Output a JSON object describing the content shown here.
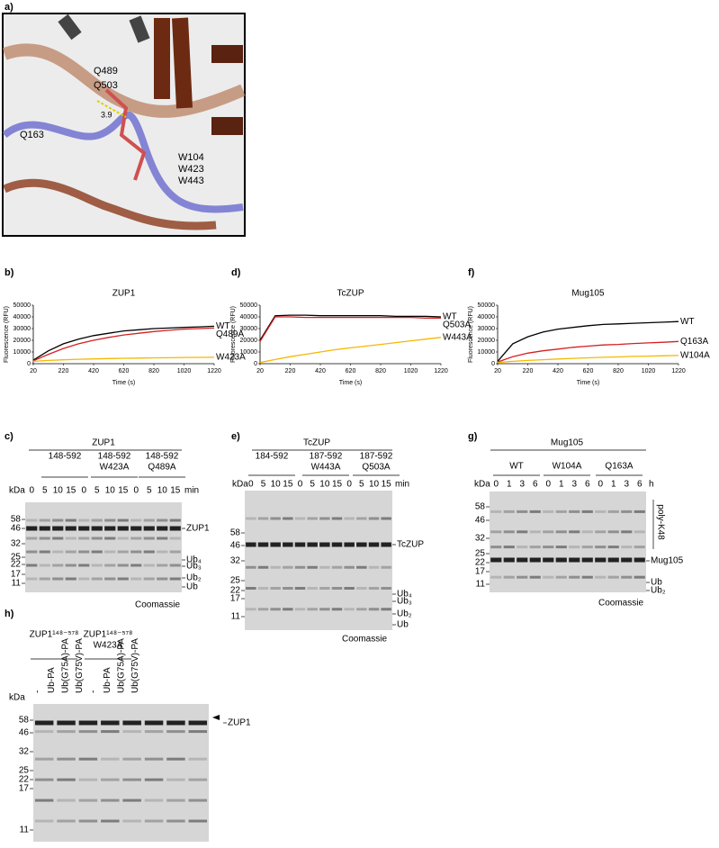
{
  "panel_labels": {
    "a": "a)",
    "b": "b)",
    "c": "c)",
    "d": "d)",
    "e": "e)",
    "f": "f)",
    "g": "g)",
    "h": "h)"
  },
  "structure": {
    "labels": [
      {
        "text": "Q489",
        "color": "#a8a8a8"
      },
      {
        "text": "Q503",
        "color": "#8b3a1a"
      },
      {
        "text": "3.9",
        "color": "#000000"
      },
      {
        "text": "Q163",
        "color": "#4a4aa8"
      },
      {
        "text": "W104",
        "color": "#4a4aa8"
      },
      {
        "text": "W423",
        "color": "#a8a8a8"
      },
      {
        "text": "W443",
        "color": "#8b3a1a"
      }
    ]
  },
  "chart_data": [
    {
      "type": "line",
      "title": "ZUP1",
      "x_label": "Time (s)",
      "y_label": "Fluorescence (RFU)",
      "x": [
        20,
        120,
        220,
        320,
        420,
        520,
        620,
        720,
        820,
        920,
        1020,
        1120,
        1220
      ],
      "xlim": [
        20,
        1220
      ],
      "xticks": [
        20,
        220,
        420,
        620,
        820,
        1020,
        1220
      ],
      "ylim": [
        0,
        50000
      ],
      "yticks": [
        0,
        10000,
        20000,
        30000,
        40000,
        50000
      ],
      "series": [
        {
          "name": "WT",
          "color": "#000000",
          "values": [
            3000,
            11000,
            17000,
            21000,
            24000,
            26000,
            28000,
            29000,
            30000,
            30500,
            31000,
            31500,
            32000
          ]
        },
        {
          "name": "Q489A",
          "color": "#d42020",
          "values": [
            2500,
            8000,
            13000,
            17000,
            20000,
            22500,
            24500,
            26000,
            27500,
            28500,
            29500,
            30000,
            30500
          ]
        },
        {
          "name": "W423A",
          "color": "#f5b800",
          "values": [
            2000,
            2800,
            3300,
            3800,
            4100,
            4400,
            4600,
            4800,
            5000,
            5100,
            5300,
            5400,
            5500
          ]
        }
      ]
    },
    {
      "type": "line",
      "title": "TcZUP",
      "x_label": "Time (s)",
      "y_label": "Fluorescence (RFU)",
      "x": [
        20,
        120,
        220,
        320,
        420,
        520,
        620,
        720,
        820,
        920,
        1020,
        1120,
        1220
      ],
      "xlim": [
        20,
        1220
      ],
      "xticks": [
        20,
        220,
        420,
        620,
        820,
        1020,
        1220
      ],
      "ylim": [
        0,
        50000
      ],
      "yticks": [
        0,
        10000,
        20000,
        30000,
        40000,
        50000
      ],
      "series": [
        {
          "name": "WT",
          "color": "#000000",
          "values": [
            20000,
            41000,
            41500,
            41500,
            41000,
            41000,
            41000,
            41000,
            41000,
            40500,
            40500,
            40500,
            40000
          ]
        },
        {
          "name": "Q503A",
          "color": "#d42020",
          "values": [
            19000,
            40000,
            40000,
            39500,
            39500,
            39500,
            39500,
            39500,
            39500,
            39500,
            39500,
            39000,
            39000
          ]
        },
        {
          "name": "W443A",
          "color": "#f5b800",
          "values": [
            1000,
            3500,
            6000,
            8000,
            10000,
            12000,
            13500,
            15000,
            16500,
            18000,
            19500,
            21000,
            22500
          ]
        }
      ]
    },
    {
      "type": "line",
      "title": "Mug105",
      "x_label": "Time (s)",
      "y_label": "Fluorescence (RFU)",
      "x": [
        20,
        120,
        220,
        320,
        420,
        520,
        620,
        720,
        820,
        920,
        1020,
        1120,
        1220
      ],
      "xlim": [
        20,
        1220
      ],
      "xticks": [
        20,
        220,
        420,
        620,
        820,
        1020,
        1220
      ],
      "ylim": [
        0,
        50000
      ],
      "yticks": [
        0,
        10000,
        20000,
        30000,
        40000,
        50000
      ],
      "series": [
        {
          "name": "WT",
          "color": "#000000",
          "values": [
            2000,
            17000,
            23000,
            27000,
            29500,
            31000,
            32500,
            33500,
            34000,
            34500,
            35000,
            35500,
            36000
          ]
        },
        {
          "name": "Q163A",
          "color": "#d42020",
          "values": [
            1500,
            6000,
            9000,
            11000,
            12500,
            14000,
            15000,
            16000,
            16500,
            17200,
            17800,
            18300,
            19000
          ]
        },
        {
          "name": "W104A",
          "color": "#f5b800",
          "values": [
            1000,
            2000,
            2800,
            3400,
            4000,
            4500,
            5000,
            5500,
            5800,
            6200,
            6500,
            6800,
            7000
          ]
        }
      ]
    }
  ],
  "gels": [
    {
      "title": "ZUP1",
      "constructs": [
        [
          "148-592"
        ],
        [
          "148-592",
          "W423A"
        ],
        [
          "148-592",
          "Q489A"
        ]
      ],
      "lanes": [
        [
          "0",
          "5",
          "10",
          "15"
        ],
        [
          "0",
          "5",
          "10",
          "15"
        ],
        [
          "0",
          "5",
          "10",
          "15"
        ]
      ],
      "unit": "min",
      "kda_label": "kDa",
      "markers": [
        "58",
        "46",
        "32",
        "25",
        "22",
        "17",
        "11"
      ],
      "bands": [
        "ZUP1",
        "Ub₄",
        "Ub₃",
        "Ub₂",
        "Ub"
      ],
      "stain": "Coomassie"
    },
    {
      "title": "TcZUP",
      "constructs": [
        [
          "184-592"
        ],
        [
          "187-592",
          "W443A"
        ],
        [
          "187-592",
          "Q503A"
        ]
      ],
      "lanes": [
        [
          "0",
          "5",
          "10",
          "15"
        ],
        [
          "0",
          "5",
          "10",
          "15"
        ],
        [
          "0",
          "5",
          "10",
          "15"
        ]
      ],
      "unit": "min",
      "kda_label": "kDa",
      "markers": [
        "58",
        "46",
        "32",
        "25",
        "22",
        "17",
        "11"
      ],
      "bands": [
        "TcZUP",
        "Ub₄",
        "Ub₃",
        "Ub₂",
        "Ub"
      ],
      "stain": "Coomassie"
    },
    {
      "title": "Mug105",
      "constructs": [
        [
          "WT"
        ],
        [
          "W104A"
        ],
        [
          "Q163A"
        ]
      ],
      "lanes": [
        [
          "0",
          "1",
          "3",
          "6"
        ],
        [
          "0",
          "1",
          "3",
          "6"
        ],
        [
          "0",
          "1",
          "3",
          "6"
        ]
      ],
      "unit": "h",
      "kda_label": "kDa",
      "markers": [
        "58",
        "46",
        "32",
        "25",
        "22",
        "17",
        "11"
      ],
      "bands": [
        "poly-K48",
        "Mug105",
        "Ub",
        "Ub₂"
      ],
      "stain": "Coomassie"
    },
    {
      "constructs": [
        [
          "ZUP1¹⁴⁸⁻⁵⁷⁸"
        ],
        [
          "ZUP1¹⁴⁸⁻⁵⁷⁸",
          "W423A"
        ]
      ],
      "lanes": [
        [
          "-",
          "Ub-PA",
          "Ub(G75A)-PA",
          "Ub(G75V)-PA"
        ],
        [
          "-",
          "Ub-PA",
          "Ub(G75A)-PA",
          "Ub(G75V)-PA"
        ]
      ],
      "kda_label": "kDa",
      "markers": [
        "58",
        "46",
        "32",
        "25",
        "22",
        "17",
        "11"
      ],
      "bands": [
        "ZUP1"
      ]
    }
  ]
}
